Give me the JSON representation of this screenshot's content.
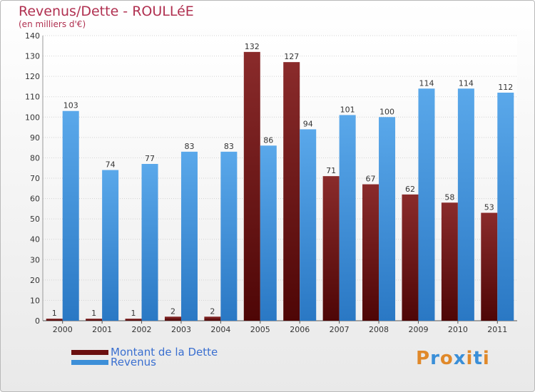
{
  "chart_data": {
    "type": "bar",
    "title": "Revenus/Dette - ROULLéE",
    "subtitle": "(en milliers d'€)",
    "categories": [
      "2000",
      "2001",
      "2002",
      "2003",
      "2004",
      "2005",
      "2006",
      "2007",
      "2008",
      "2009",
      "2010",
      "2011"
    ],
    "series": [
      {
        "name": "Montant de la Dette",
        "color": "#7b1c1c",
        "values": [
          1,
          1,
          1,
          2,
          2,
          132,
          127,
          71,
          67,
          62,
          58,
          53
        ]
      },
      {
        "name": "Revenus",
        "color": "#4f9fe3",
        "values": [
          103,
          74,
          77,
          83,
          83,
          86,
          94,
          101,
          100,
          114,
          114,
          112
        ]
      }
    ],
    "ylim": [
      0,
      140
    ],
    "yticks": [
      0,
      10,
      20,
      30,
      40,
      50,
      60,
      70,
      80,
      90,
      100,
      110,
      120,
      130,
      140
    ],
    "grid": true,
    "legend": "bottom-left"
  },
  "logo": {
    "text": "Proxiti",
    "letters": [
      "P",
      "r",
      "o",
      "x",
      "i",
      "t",
      "i"
    ],
    "colors": [
      "#e0892a",
      "#3a8fd8",
      "#e0892a",
      "#3a8fd8",
      "#e0892a",
      "#3a8fd8",
      "#e0892a"
    ]
  }
}
